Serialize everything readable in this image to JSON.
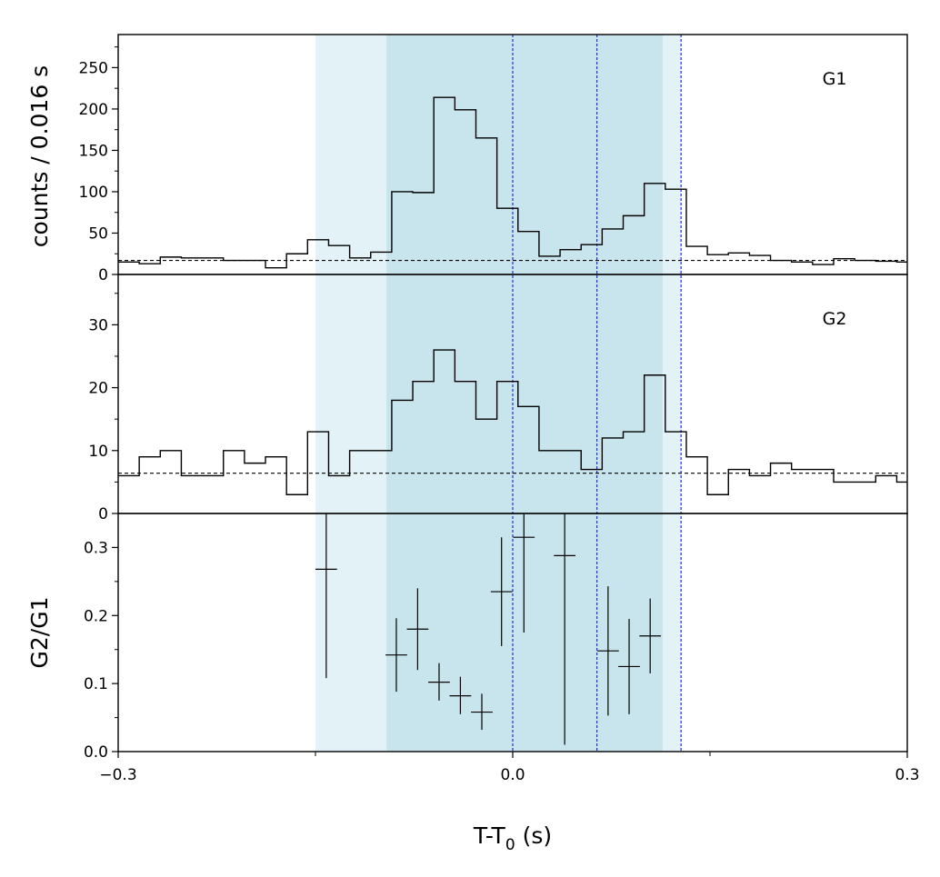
{
  "chart_data": {
    "type": "multi-panel histogram and error-bar plot",
    "xlabel": "T-T",
    "xlabel_sub": "0",
    "xlabel_suffix": " (s)",
    "xlim": [
      -0.3,
      0.3
    ],
    "x_ticks": [
      {
        "value": -0.3,
        "label": "−0.3"
      },
      {
        "value": 0.0,
        "label": "0.0"
      },
      {
        "value": 0.3,
        "label": "0.3"
      }
    ],
    "shared_ylabel": "counts /  0.016 s",
    "shaded_regions": [
      {
        "x0": -0.15,
        "x1": 0.128,
        "color": "#e3f2f6"
      },
      {
        "x0": -0.096,
        "x1": 0.114,
        "color": "#c8e4ec"
      }
    ],
    "vertical_lines": {
      "x": [
        0.0,
        0.064,
        0.128
      ],
      "color": "#2030e0",
      "style": "dashed"
    },
    "bin_edges": [
      -0.3,
      -0.284,
      -0.268,
      -0.252,
      -0.236,
      -0.22,
      -0.204,
      -0.188,
      -0.172,
      -0.156,
      -0.14,
      -0.124,
      -0.108,
      -0.092,
      -0.076,
      -0.06,
      -0.044,
      -0.028,
      -0.012,
      0.004,
      0.02,
      0.036,
      0.052,
      0.068,
      0.084,
      0.1,
      0.116,
      0.132,
      0.148,
      0.164,
      0.18,
      0.196,
      0.212,
      0.228,
      0.244,
      0.26,
      0.276,
      0.292,
      0.3
    ],
    "panels": [
      {
        "name": "G1",
        "label": "G1",
        "ylim": [
          0,
          290
        ],
        "y_ticks": [
          0,
          50,
          100,
          150,
          200,
          250
        ],
        "counts": [
          15,
          13,
          21,
          20,
          20,
          17,
          17,
          8,
          25,
          42,
          35,
          20,
          27,
          100,
          99,
          214,
          199,
          165,
          80,
          52,
          22,
          30,
          36,
          55,
          71,
          110,
          103,
          34,
          24,
          26,
          23,
          17,
          15,
          12,
          19,
          17,
          16,
          15
        ],
        "background": 17
      },
      {
        "name": "G2",
        "label": "G2",
        "ylim": [
          0,
          38
        ],
        "y_ticks": [
          0,
          10,
          20,
          30
        ],
        "counts": [
          6,
          9,
          10,
          6,
          6,
          10,
          8,
          9,
          3,
          13,
          6,
          10,
          10,
          18,
          21,
          26,
          21,
          15,
          21,
          17,
          10,
          10,
          7,
          12,
          13,
          22,
          13,
          9,
          3,
          7,
          6,
          8,
          7,
          7,
          5,
          5,
          6,
          5
        ],
        "background": 6.4
      },
      {
        "name": "G2/G1",
        "ylabel": "G2/G1",
        "ylim": [
          0,
          0.35
        ],
        "y_ticks": [
          {
            "value": 0.0,
            "label": "0.0"
          },
          {
            "value": 0.1,
            "label": "0.1"
          },
          {
            "value": 0.2,
            "label": "0.2"
          },
          {
            "value": 0.3,
            "label": "0.3"
          }
        ],
        "points": [
          {
            "x": -0.1418,
            "y": 0.268,
            "xerr": 0.0082,
            "ylo": 0.108,
            "yhi": 0.35
          },
          {
            "x": -0.0885,
            "y": 0.142,
            "xerr": 0.0082,
            "ylo": 0.088,
            "yhi": 0.196
          },
          {
            "x": -0.0723,
            "y": 0.18,
            "xerr": 0.0082,
            "ylo": 0.12,
            "yhi": 0.24
          },
          {
            "x": -0.056,
            "y": 0.102,
            "xerr": 0.0082,
            "ylo": 0.075,
            "yhi": 0.13
          },
          {
            "x": -0.0398,
            "y": 0.082,
            "xerr": 0.0082,
            "ylo": 0.055,
            "yhi": 0.11
          },
          {
            "x": -0.0235,
            "y": 0.058,
            "xerr": 0.0082,
            "ylo": 0.032,
            "yhi": 0.085
          },
          {
            "x": -0.0085,
            "y": 0.235,
            "xerr": 0.0082,
            "ylo": 0.155,
            "yhi": 0.315
          },
          {
            "x": 0.0085,
            "y": 0.315,
            "xerr": 0.0082,
            "ylo": 0.175,
            "yhi": 0.35
          },
          {
            "x": 0.0395,
            "y": 0.288,
            "xerr": 0.0082,
            "ylo": 0.01,
            "yhi": 0.35
          },
          {
            "x": 0.0725,
            "y": 0.148,
            "xerr": 0.0082,
            "ylo": 0.053,
            "yhi": 0.243
          },
          {
            "x": 0.0885,
            "y": 0.125,
            "xerr": 0.0082,
            "ylo": 0.055,
            "yhi": 0.195
          },
          {
            "x": 0.1045,
            "y": 0.17,
            "xerr": 0.0082,
            "ylo": 0.115,
            "yhi": 0.225
          }
        ]
      }
    ]
  }
}
